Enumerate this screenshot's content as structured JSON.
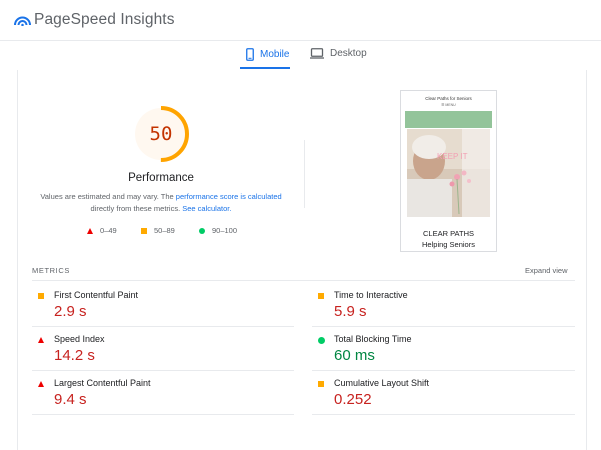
{
  "header": {
    "app_title": "PageSpeed Insights"
  },
  "tabs": [
    {
      "label": "Mobile",
      "active": true
    },
    {
      "label": "Desktop",
      "active": false
    }
  ],
  "performance": {
    "score": "50",
    "score_fraction": 0.5,
    "title": "Performance",
    "desc_prefix": "Values are estimated and may vary. The ",
    "desc_link1": "performance score is calculated",
    "desc_middle": " directly from these metrics. ",
    "desc_link2": "See calculator."
  },
  "legend": [
    {
      "range": "0–49",
      "shape": "triangle",
      "color": "#ee0000"
    },
    {
      "range": "50–89",
      "shape": "square",
      "color": "#ffaa00"
    },
    {
      "range": "90–100",
      "shape": "circle",
      "color": "#00cc66"
    }
  ],
  "screenshot": {
    "site_title": "Clear Paths for Seniors",
    "menu": "☰ MENU",
    "overlay_text": "KEEP IT",
    "caption_line1": "CLEAR PATHS",
    "caption_line2": "Helping Seniors"
  },
  "metrics": {
    "section_label": "METRICS",
    "expand_label": "Expand view",
    "items": [
      {
        "label": "First Contentful Paint",
        "value": "2.9 s",
        "status": "average"
      },
      {
        "label": "Time to Interactive",
        "value": "5.9 s",
        "status": "poor"
      },
      {
        "label": "Speed Index",
        "value": "14.2 s",
        "status": "fail"
      },
      {
        "label": "Total Blocking Time",
        "value": "60 ms",
        "status": "pass"
      },
      {
        "label": "Largest Contentful Paint",
        "value": "9.4 s",
        "status": "fail"
      },
      {
        "label": "Cumulative Layout Shift",
        "value": "0.252",
        "status": "average"
      }
    ]
  },
  "colors": {
    "accent": "#1a73e8",
    "fail": "#c7221f",
    "pass": "#018642",
    "average_marker": "#ffaa00",
    "gauge": "#ffa400"
  }
}
